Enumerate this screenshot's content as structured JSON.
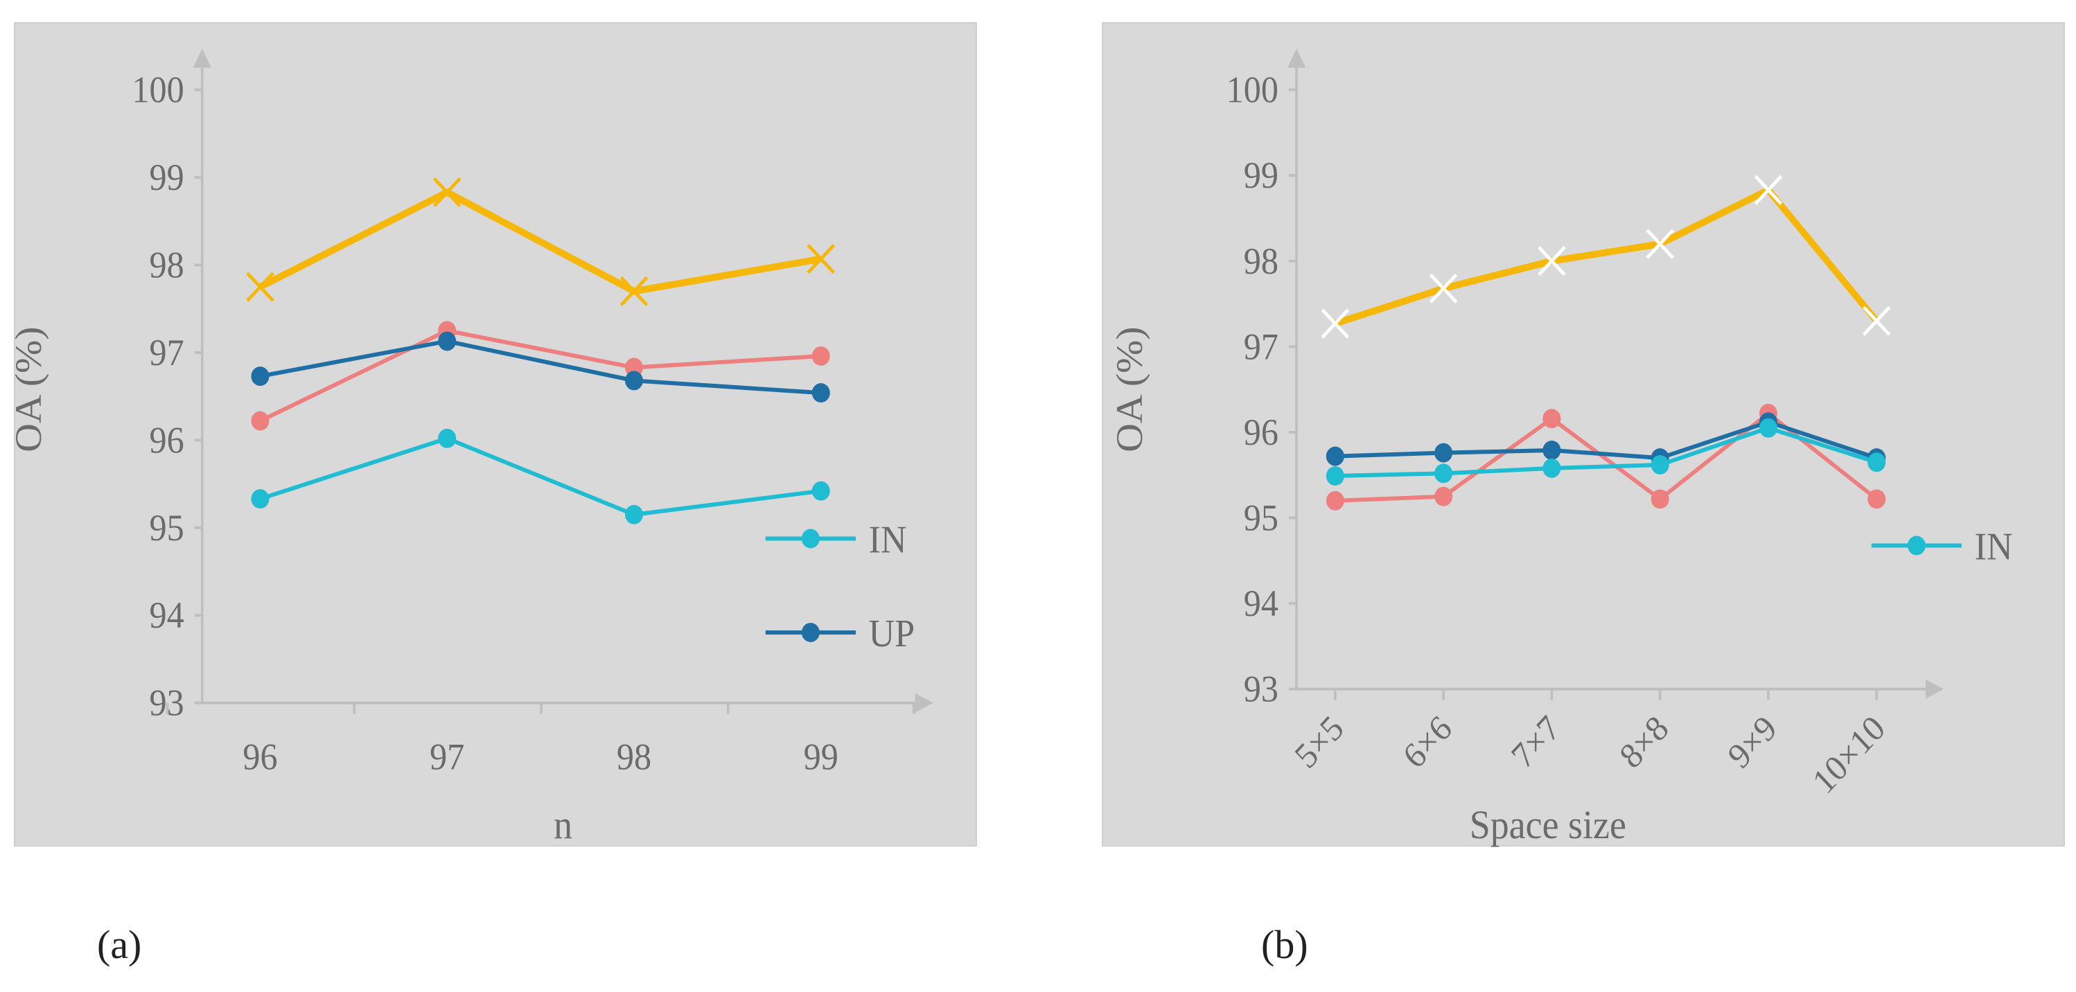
{
  "chart_data": [
    {
      "type": "line",
      "panel_label": "(a)",
      "xlabel": "n",
      "ylabel": "OA (%)",
      "categories": [
        "96",
        "97",
        "98",
        "99"
      ],
      "ylim": [
        93,
        100
      ],
      "yticks": [
        "93",
        "94",
        "95",
        "96",
        "97",
        "98",
        "99",
        "100"
      ],
      "series": [
        {
          "name": "",
          "color": "#f5b70a",
          "marker": "x",
          "values": [
            97.75,
            98.83,
            97.7,
            98.07
          ]
        },
        {
          "name": "",
          "color": "#ee7f7f",
          "marker": "circle",
          "values": [
            96.22,
            97.25,
            96.83,
            96.96
          ]
        },
        {
          "name": "UP",
          "color": "#1f6fa4",
          "marker": "circle",
          "values": [
            96.73,
            97.13,
            96.68,
            96.54
          ]
        },
        {
          "name": "IN",
          "color": "#1fbcd2",
          "marker": "circle",
          "values": [
            95.33,
            96.02,
            95.15,
            95.42
          ]
        }
      ],
      "legend": [
        {
          "label": "IN",
          "color": "#1fbcd2"
        },
        {
          "label": "UP",
          "color": "#1f6fa4"
        }
      ]
    },
    {
      "type": "line",
      "panel_label": "(b)",
      "xlabel": "Space size",
      "ylabel": "OA (%)",
      "categories": [
        "5×5",
        "6×6",
        "7×7",
        "8×8",
        "9×9",
        "10×10"
      ],
      "ylim": [
        93,
        100
      ],
      "yticks": [
        "93",
        "94",
        "95",
        "96",
        "97",
        "98",
        "99",
        "100"
      ],
      "series": [
        {
          "name": "",
          "color": "#f5b70a",
          "marker": "x",
          "values": [
            97.27,
            97.68,
            98.0,
            98.2,
            98.83,
            97.3
          ]
        },
        {
          "name": "",
          "color": "#ee7f7f",
          "marker": "circle",
          "values": [
            95.2,
            95.25,
            96.16,
            95.22,
            96.22,
            95.22
          ]
        },
        {
          "name": "",
          "color": "#1f6fa4",
          "marker": "circle",
          "values": [
            95.72,
            95.76,
            95.79,
            95.7,
            96.12,
            95.7
          ]
        },
        {
          "name": "IN",
          "color": "#1fbcd2",
          "marker": "circle",
          "values": [
            95.49,
            95.52,
            95.58,
            95.62,
            96.05,
            95.65
          ]
        }
      ],
      "legend": [
        {
          "label": "IN",
          "color": "#1fbcd2"
        }
      ]
    }
  ]
}
